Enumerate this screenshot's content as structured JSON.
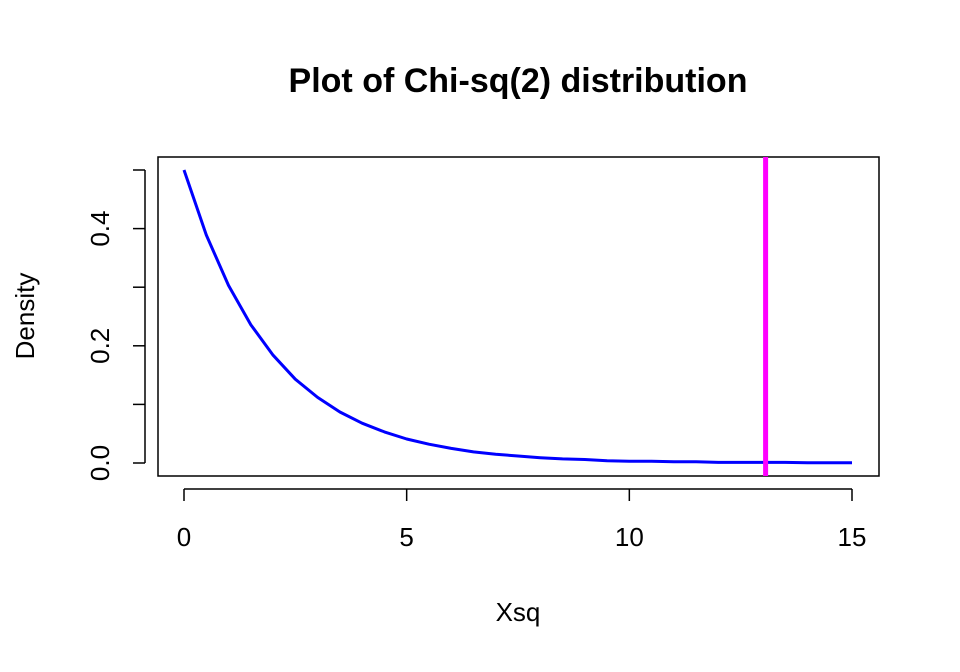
{
  "chart_data": {
    "type": "line",
    "title": "Plot of Chi-sq(2) distribution",
    "xlabel": "Xsq",
    "ylabel": "Density",
    "xlim": [
      0,
      15
    ],
    "ylim": [
      0,
      0.5
    ],
    "x_ticks": [
      0,
      5,
      10,
      15
    ],
    "x_tick_labels": [
      "0",
      "5",
      "10",
      "15"
    ],
    "y_ticks": [
      0,
      0.1,
      0.2,
      0.3,
      0.4,
      0.5
    ],
    "y_tick_labels": [
      "0.0",
      "",
      "0.2",
      "",
      "0.4",
      ""
    ],
    "grid": false,
    "series": [
      {
        "color": "#0000ff",
        "x": [
          0,
          0.5,
          1,
          1.5,
          2,
          2.5,
          3,
          3.5,
          4,
          4.5,
          5,
          5.5,
          6,
          6.5,
          7,
          7.5,
          8,
          8.5,
          9,
          9.5,
          10,
          10.5,
          11,
          11.5,
          12,
          12.5,
          13,
          13.5,
          14,
          14.5,
          15
        ],
        "y": [
          0.5,
          0.389,
          0.303,
          0.236,
          0.184,
          0.143,
          0.112,
          0.087,
          0.068,
          0.053,
          0.041,
          0.032,
          0.025,
          0.019,
          0.015,
          0.012,
          0.009,
          0.007,
          0.006,
          0.004,
          0.003,
          0.003,
          0.002,
          0.002,
          0.001,
          0.001,
          0.001,
          0.001,
          0.0005,
          0.0004,
          0.0003
        ]
      }
    ],
    "vline": {
      "x": 13.06,
      "color": "#ff00ff"
    }
  }
}
